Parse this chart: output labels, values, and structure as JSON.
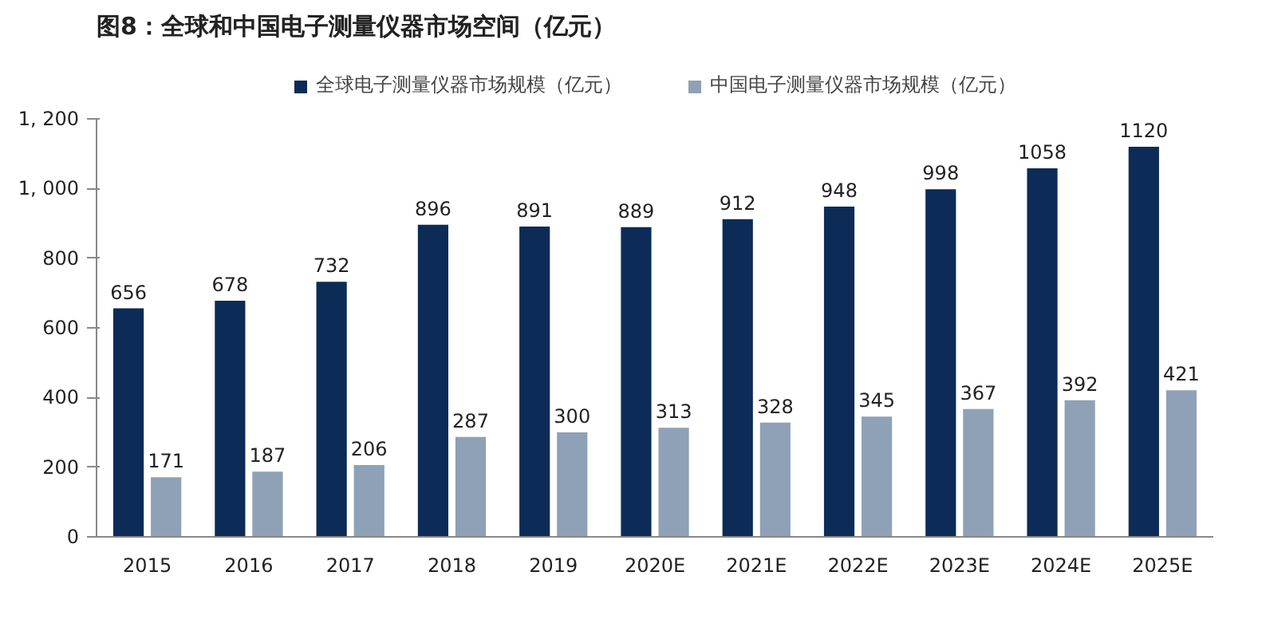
{
  "chart_data": {
    "type": "bar",
    "title": "图8：全球和中国电子测量仪器市场空间（亿元）",
    "categories": [
      "2015",
      "2016",
      "2017",
      "2018",
      "2019",
      "2020E",
      "2021E",
      "2022E",
      "2023E",
      "2024E",
      "2025E"
    ],
    "series": [
      {
        "name": "全球电子测量仪器市场规模（亿元）",
        "color": "#0c2b56",
        "values": [
          656,
          678,
          732,
          896,
          891,
          889,
          912,
          948,
          998,
          1058,
          1120
        ]
      },
      {
        "name": "中国电子测量仪器市场规模（亿元）",
        "color": "#8ea1b6",
        "values": [
          171,
          187,
          206,
          287,
          300,
          313,
          328,
          345,
          367,
          392,
          421
        ]
      }
    ],
    "ylim": [
      0,
      1200
    ],
    "yticks": [
      0,
      200,
      400,
      600,
      800,
      {
        "value": 1000,
        "label": "1, 000"
      },
      {
        "value": 1200,
        "label": "1, 200"
      }
    ],
    "grid": false,
    "legend": "top",
    "data_labels": true
  }
}
